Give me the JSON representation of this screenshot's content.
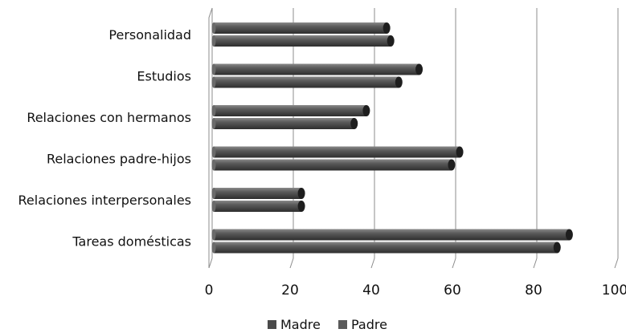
{
  "chart_data": {
    "type": "bar",
    "orientation": "horizontal",
    "style": "3d-cylinder",
    "categories": [
      "Personalidad",
      "Estudios",
      "Relaciones con hermanos",
      "Relaciones padre-hijos",
      "Relaciones interpersonales",
      "Tareas domésticas"
    ],
    "series": [
      {
        "name": "Madre",
        "values": [
          43,
          51,
          38,
          61,
          22,
          88
        ],
        "color": "#4a4a4a"
      },
      {
        "name": "Padre",
        "values": [
          44,
          46,
          35,
          59,
          22,
          85
        ],
        "color": "#5a5a5a"
      }
    ],
    "xlim": [
      0,
      100
    ],
    "xticks": [
      0,
      20,
      40,
      60,
      80,
      100
    ],
    "grid": true,
    "legend_position": "bottom"
  }
}
